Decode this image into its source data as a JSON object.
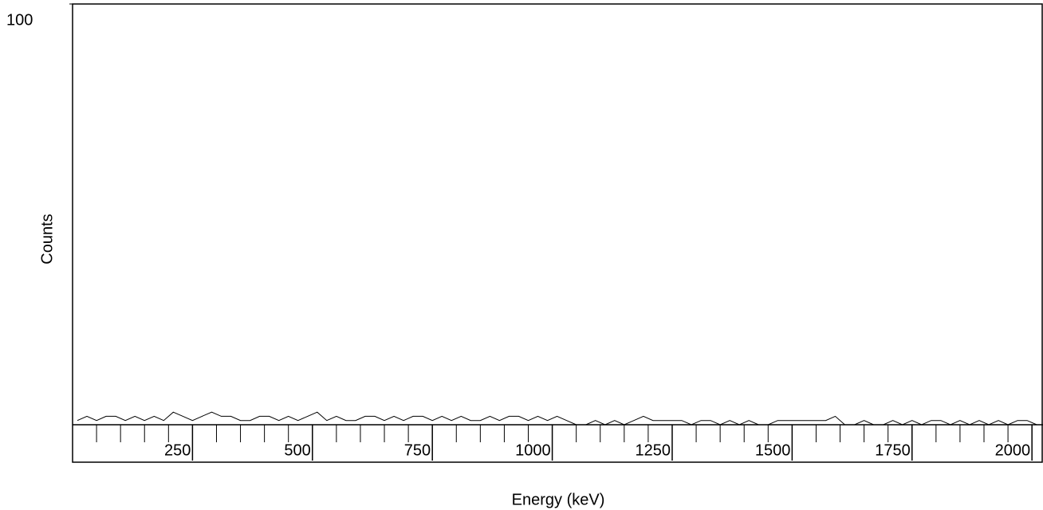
{
  "chart_data": {
    "type": "line",
    "ylabel": "Counts",
    "xlabel": "Energy (keV)",
    "color": "#000000",
    "xlim": [
      0,
      2023
    ],
    "ylim": [
      0,
      100
    ],
    "xticks": [
      250,
      500,
      750,
      1000,
      1250,
      1500,
      1750,
      2000
    ],
    "xminor_ticks": [
      50,
      100,
      150,
      200,
      300,
      350,
      400,
      450,
      550,
      600,
      650,
      700,
      800,
      850,
      900,
      950,
      1050,
      1100,
      1150,
      1200,
      1300,
      1350,
      1400,
      1450,
      1550,
      1600,
      1650,
      1700,
      1800,
      1850,
      1900,
      1950
    ],
    "yticks": [
      100
    ],
    "x": [
      10,
      30,
      50,
      70,
      90,
      110,
      130,
      150,
      170,
      190,
      210,
      230,
      250,
      270,
      290,
      310,
      330,
      350,
      370,
      390,
      410,
      430,
      450,
      470,
      490,
      510,
      530,
      550,
      570,
      590,
      610,
      630,
      650,
      670,
      690,
      710,
      730,
      750,
      770,
      790,
      810,
      830,
      850,
      870,
      890,
      910,
      930,
      950,
      970,
      990,
      1010,
      1030,
      1050,
      1070,
      1090,
      1110,
      1130,
      1150,
      1170,
      1190,
      1210,
      1230,
      1250,
      1270,
      1290,
      1310,
      1330,
      1350,
      1370,
      1390,
      1410,
      1430,
      1450,
      1470,
      1490,
      1510,
      1530,
      1550,
      1570,
      1590,
      1610,
      1630,
      1650,
      1670,
      1690,
      1710,
      1730,
      1750,
      1770,
      1790,
      1810,
      1830,
      1850,
      1870,
      1890,
      1910,
      1930,
      1950,
      1970,
      1990,
      2010
    ],
    "values": [
      1,
      2,
      1,
      2,
      2,
      1,
      2,
      1,
      2,
      1,
      3,
      2,
      1,
      2,
      3,
      2,
      2,
      1,
      1,
      2,
      2,
      1,
      2,
      1,
      2,
      3,
      1,
      2,
      1,
      1,
      2,
      2,
      1,
      2,
      1,
      2,
      2,
      1,
      2,
      1,
      2,
      1,
      1,
      2,
      1,
      2,
      2,
      1,
      2,
      1,
      2,
      1,
      0,
      0,
      1,
      0,
      1,
      0,
      1,
      2,
      1,
      1,
      1,
      1,
      0,
      1,
      1,
      0,
      1,
      0,
      1,
      0,
      0,
      1,
      1,
      1,
      1,
      1,
      1,
      2,
      0,
      0,
      1,
      0,
      0,
      1,
      0,
      1,
      0,
      1,
      1,
      0,
      1,
      0,
      1,
      0,
      1,
      0,
      1,
      1,
      0
    ]
  }
}
